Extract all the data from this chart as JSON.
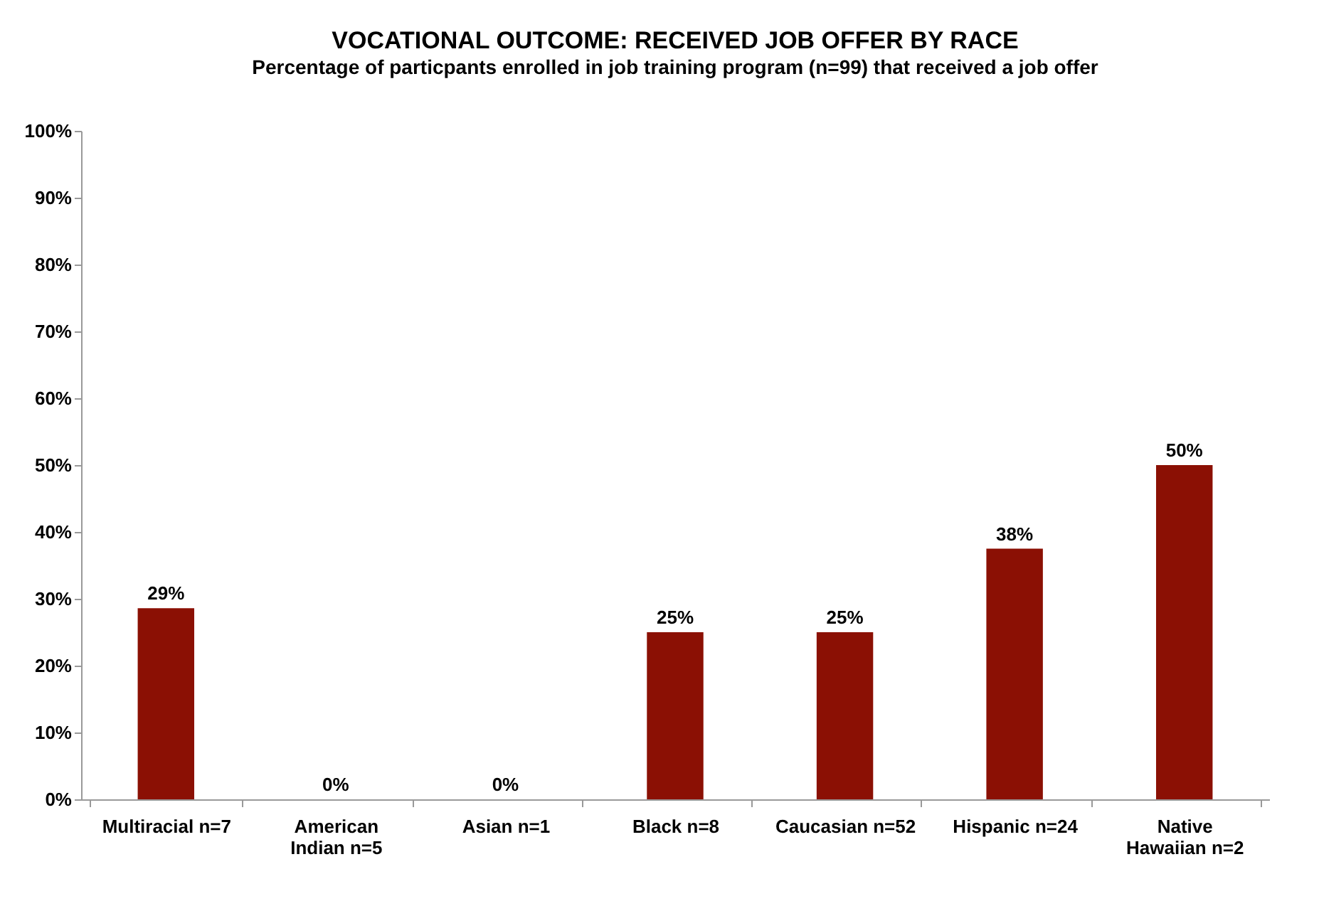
{
  "chart_data": {
    "type": "bar",
    "title": "VOCATIONAL OUTCOME: RECEIVED JOB OFFER BY RACE",
    "subtitle": "Percentage of particpants enrolled in job training program (n=99) that received a job offer",
    "categories": [
      "Multiracial n=7",
      "American Indian n=5",
      "Asian n=1",
      "Black n=8",
      "Caucasian n=52",
      "Hispanic n=24",
      "Native Hawaiian n=2"
    ],
    "values": [
      28.6,
      0,
      0,
      25,
      25,
      37.5,
      50
    ],
    "value_labels": [
      "29%",
      "0%",
      "0%",
      "25%",
      "25%",
      "38%",
      "50%"
    ],
    "color": "#8b1004",
    "ylim": [
      0,
      100
    ],
    "yticks": [
      {
        "value": 0,
        "label": "0%"
      },
      {
        "value": 10,
        "label": "10%"
      },
      {
        "value": 20,
        "label": "20%"
      },
      {
        "value": 30,
        "label": "30%"
      },
      {
        "value": 40,
        "label": "40%"
      },
      {
        "value": 50,
        "label": "50%"
      },
      {
        "value": 60,
        "label": "60%"
      },
      {
        "value": 70,
        "label": "70%"
      },
      {
        "value": 80,
        "label": "80%"
      },
      {
        "value": 90,
        "label": "90%"
      },
      {
        "value": 100,
        "label": "100%"
      }
    ],
    "grid": false
  }
}
